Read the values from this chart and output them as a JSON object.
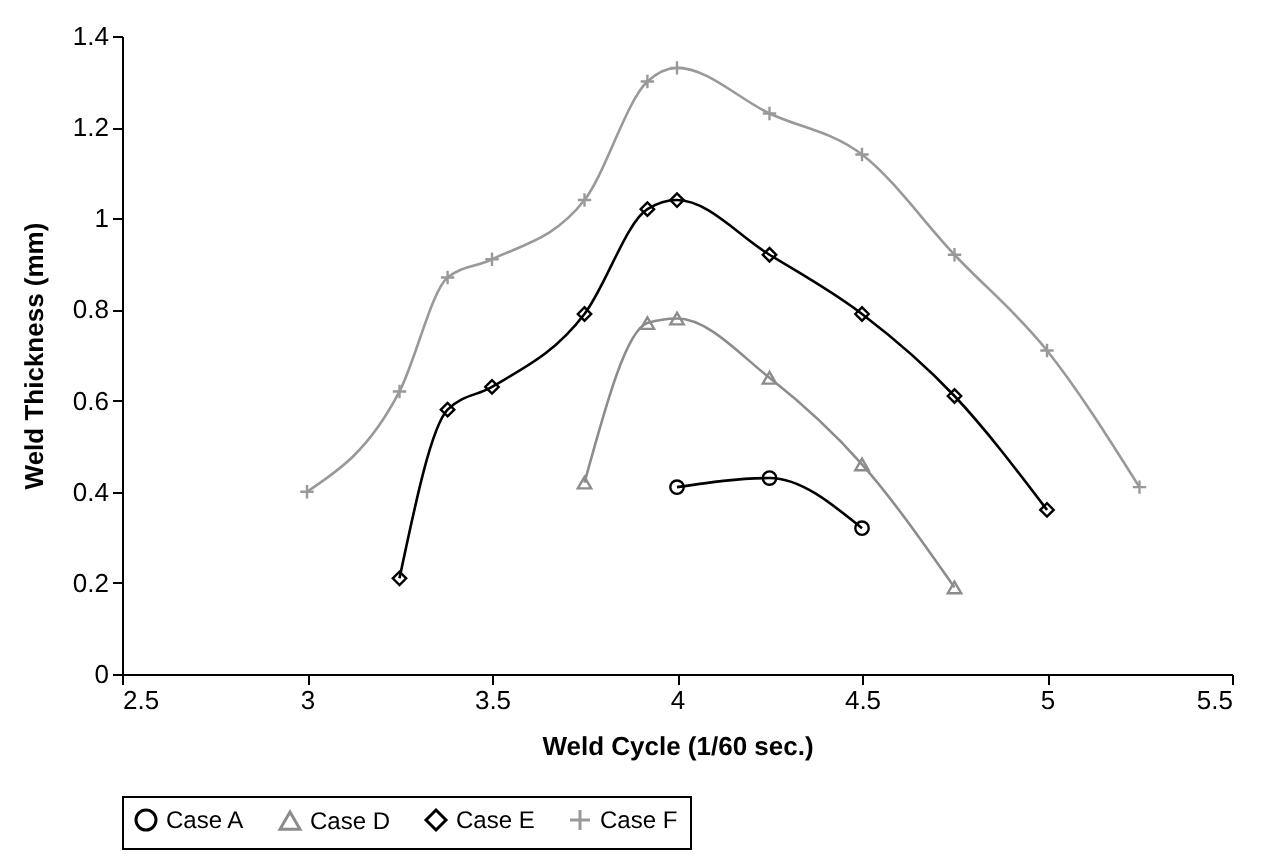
{
  "chart_data": {
    "type": "line",
    "xlabel": "Weld Cycle (1/60 sec.)",
    "ylabel": "Weld Thickness (mm)",
    "xlim": [
      2.5,
      5.5
    ],
    "xticks": [
      2.5,
      3,
      3.5,
      4,
      4.5,
      5,
      5.5
    ],
    "ylim": [
      0,
      1.4
    ],
    "yticks": [
      0,
      0.2,
      0.4,
      0.6,
      0.8,
      1,
      1.2,
      1.4
    ],
    "grid": false,
    "legend": "bottom",
    "series": [
      {
        "name": "Case A",
        "color": "#000000",
        "marker": "circle",
        "x": [
          4.0,
          4.25,
          4.5
        ],
        "values": [
          0.41,
          0.43,
          0.32
        ]
      },
      {
        "name": "Case D",
        "color": "#8c8c8c",
        "marker": "triangle",
        "x": [
          3.75,
          3.92,
          4.0,
          4.25,
          4.5,
          4.75
        ],
        "values": [
          0.42,
          0.77,
          0.78,
          0.65,
          0.46,
          0.19
        ]
      },
      {
        "name": "Case E",
        "color": "#000000",
        "marker": "diamond",
        "x": [
          3.25,
          3.38,
          3.5,
          3.75,
          3.92,
          4.0,
          4.25,
          4.5,
          4.75,
          5.0
        ],
        "values": [
          0.21,
          0.58,
          0.63,
          0.79,
          1.02,
          1.04,
          0.92,
          0.79,
          0.61,
          0.36
        ]
      },
      {
        "name": "Case F",
        "color": "#999999",
        "marker": "cross",
        "x": [
          3.0,
          3.25,
          3.38,
          3.5,
          3.75,
          3.92,
          4.0,
          4.25,
          4.5,
          4.75,
          5.0,
          5.25
        ],
        "values": [
          0.4,
          0.62,
          0.87,
          0.91,
          1.04,
          1.3,
          1.33,
          1.23,
          1.14,
          0.92,
          0.71,
          0.41
        ]
      }
    ]
  }
}
